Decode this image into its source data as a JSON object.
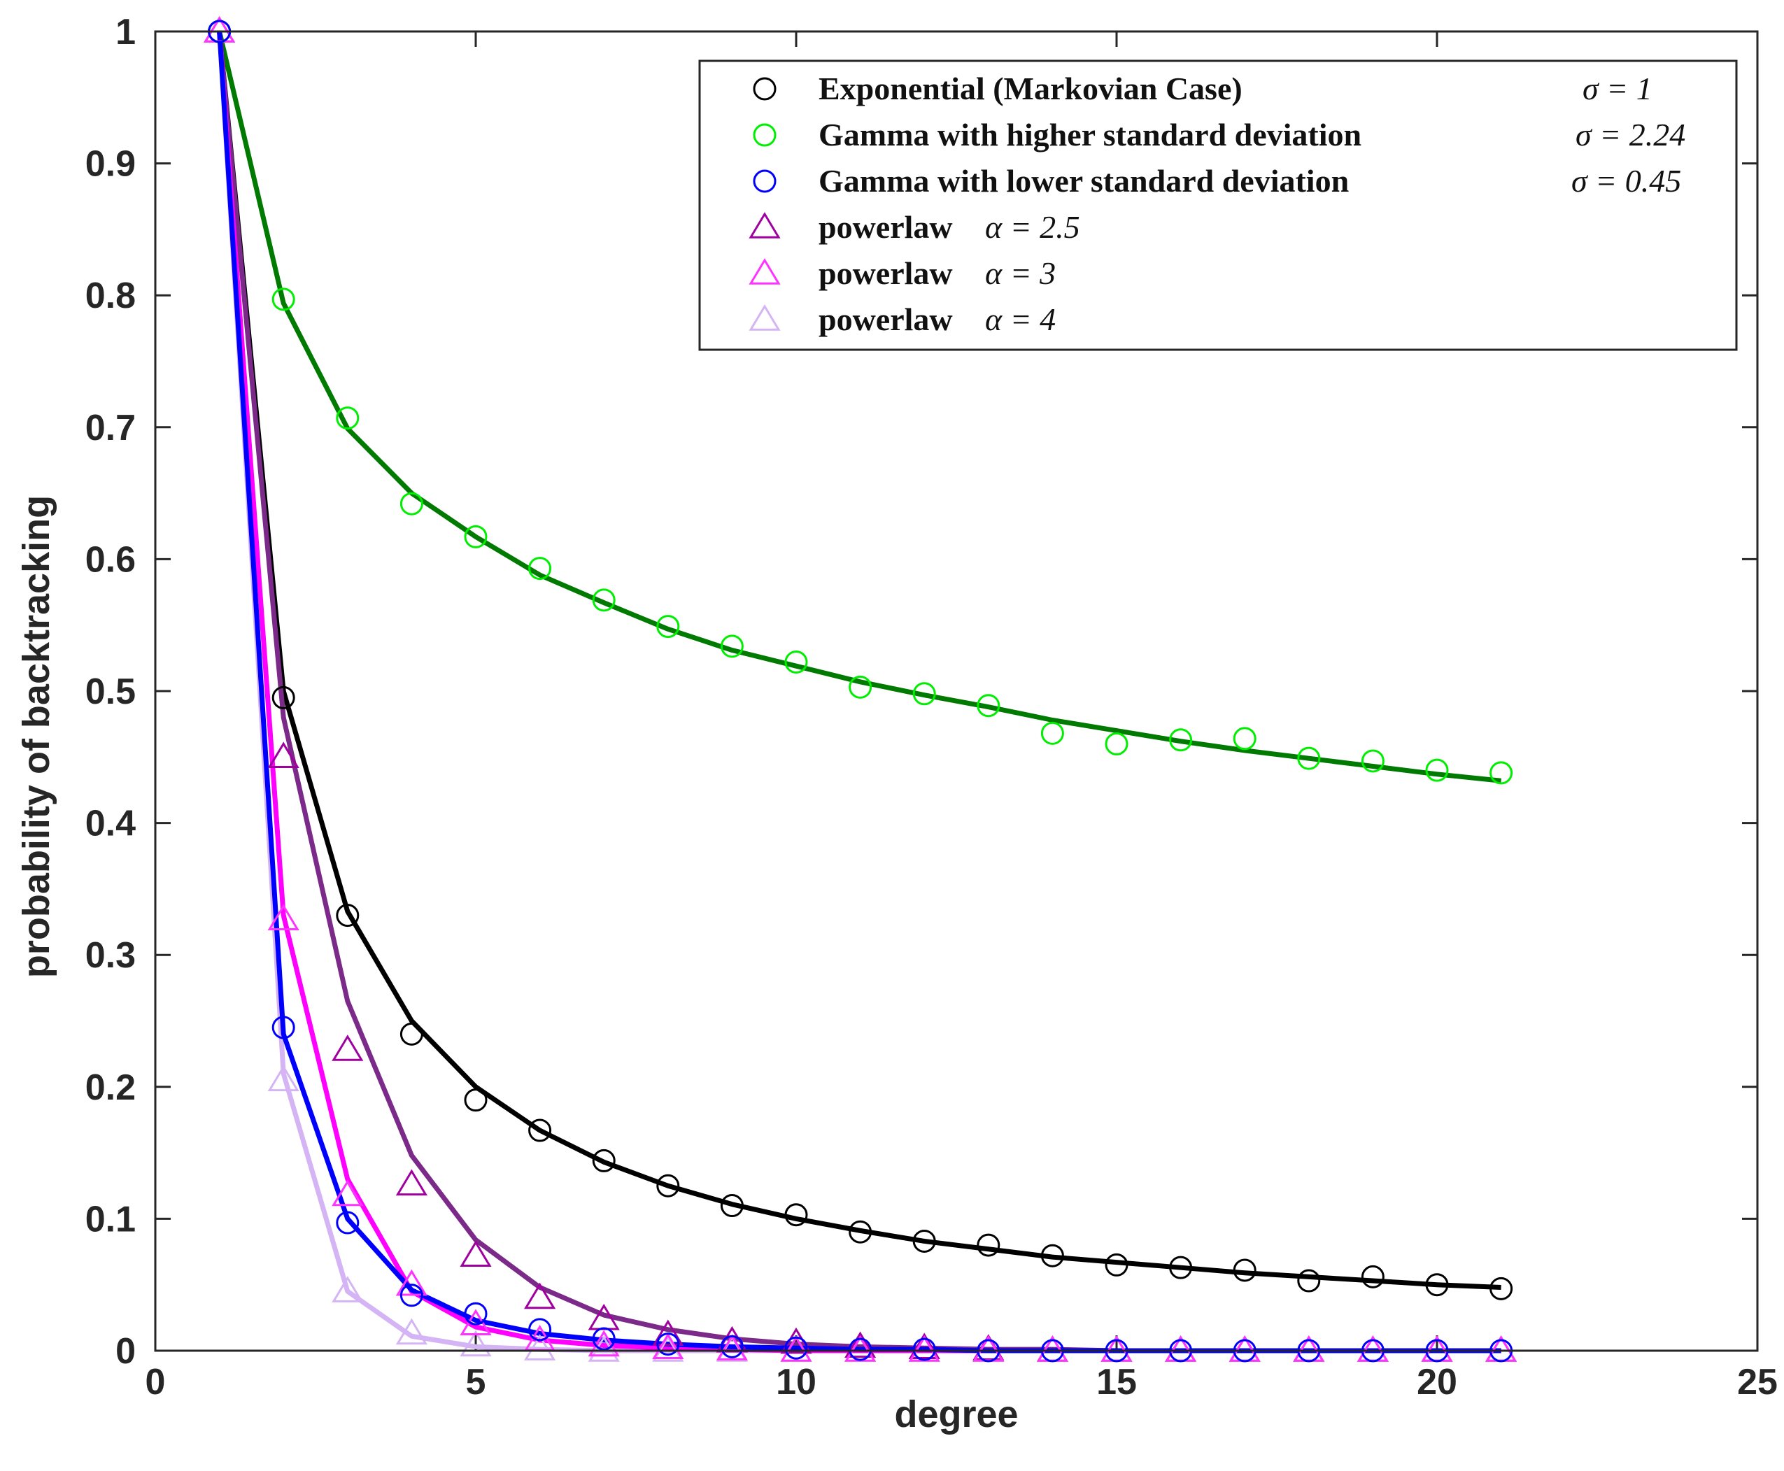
{
  "chart_data": {
    "type": "line",
    "title": "",
    "xlabel": "degree",
    "ylabel": "probability of backtracking",
    "xlim": [
      0,
      25
    ],
    "ylim": [
      0,
      1
    ],
    "xticks": [
      0,
      5,
      10,
      15,
      20,
      25
    ],
    "yticks": [
      0,
      0.1,
      0.2,
      0.3,
      0.4,
      0.5,
      0.6,
      0.7,
      0.8,
      0.9,
      1
    ],
    "x": [
      1,
      2,
      3,
      4,
      5,
      6,
      7,
      8,
      9,
      10,
      11,
      12,
      13,
      14,
      15,
      16,
      17,
      18,
      19,
      20,
      21
    ],
    "legend_position": "top-right",
    "series": [
      {
        "id": "exponential",
        "name": "Exponential (Markovian Case)",
        "sigma_label": "σ = 1",
        "marker": "circle",
        "marker_color": "#000000",
        "line_color": "#000000",
        "markers": [
          1.0,
          0.495,
          0.33,
          0.24,
          0.19,
          0.167,
          0.144,
          0.125,
          0.11,
          0.103,
          0.09,
          0.083,
          0.08,
          0.072,
          0.065,
          0.063,
          0.061,
          0.053,
          0.056,
          0.05,
          0.047
        ],
        "fit": [
          1.0,
          0.5,
          0.333,
          0.25,
          0.2,
          0.167,
          0.143,
          0.125,
          0.111,
          0.1,
          0.091,
          0.083,
          0.077,
          0.071,
          0.067,
          0.063,
          0.059,
          0.056,
          0.053,
          0.05,
          0.048
        ]
      },
      {
        "id": "gamma-high",
        "name": "Gamma with higher standard deviation",
        "sigma_label": "σ = 2.24",
        "marker": "circle",
        "marker_color": "#00ee00",
        "line_color": "#007a00",
        "markers": [
          1.0,
          0.797,
          0.707,
          0.642,
          0.617,
          0.593,
          0.569,
          0.549,
          0.534,
          0.522,
          0.503,
          0.498,
          0.489,
          0.468,
          0.46,
          0.463,
          0.464,
          0.449,
          0.447,
          0.44,
          0.438
        ],
        "fit": [
          1.0,
          0.794,
          0.699,
          0.65,
          0.617,
          0.588,
          0.567,
          0.547,
          0.531,
          0.519,
          0.507,
          0.497,
          0.488,
          0.478,
          0.47,
          0.462,
          0.455,
          0.449,
          0.443,
          0.437,
          0.432
        ]
      },
      {
        "id": "gamma-low",
        "name": "Gamma with lower standard deviation",
        "sigma_label": "σ = 0.45",
        "marker": "circle",
        "marker_color": "#0000ff",
        "line_color": "#0000ff",
        "markers": [
          1.0,
          0.245,
          0.097,
          0.042,
          0.028,
          0.016,
          0.009,
          0.005,
          0.003,
          0.002,
          0.001,
          0.001,
          0.0,
          0.0,
          0.0,
          0.0,
          0.0,
          0.0,
          0.0,
          0.0,
          0.0
        ],
        "fit": [
          1.0,
          0.24,
          0.1,
          0.046,
          0.023,
          0.013,
          0.008,
          0.005,
          0.003,
          0.002,
          0.001,
          0.001,
          0.0,
          0.0,
          0.0,
          0.0,
          0.0,
          0.0,
          0.0,
          0.0,
          0.0
        ]
      },
      {
        "id": "powerlaw-25",
        "name": "powerlaw",
        "sigma_label": "α = 2.5",
        "marker": "triangle",
        "marker_color": "#a000a0",
        "line_color": "#7b2a8a",
        "markers": [
          1.0,
          0.45,
          0.228,
          0.126,
          0.072,
          0.04,
          0.024,
          0.012,
          0.007,
          0.006,
          0.003,
          0.002,
          0.001,
          0.0,
          0.0,
          0.0,
          0.0,
          0.0,
          0.0,
          0.0,
          0.0
        ],
        "fit": [
          1.0,
          0.48,
          0.265,
          0.148,
          0.084,
          0.048,
          0.027,
          0.016,
          0.009,
          0.005,
          0.003,
          0.002,
          0.001,
          0.001,
          0.0,
          0.0,
          0.0,
          0.0,
          0.0,
          0.0,
          0.0
        ]
      },
      {
        "id": "powerlaw-3",
        "name": "powerlaw",
        "sigma_label": "α = 3",
        "marker": "triangle",
        "marker_color": "#ff33ff",
        "line_color": "#ff00ff",
        "markers": [
          1.0,
          0.327,
          0.118,
          0.05,
          0.02,
          0.008,
          0.004,
          0.002,
          0.001,
          0.0,
          0.0,
          0.0,
          0.0,
          0.0,
          0.0,
          0.0,
          0.0,
          0.0,
          0.0,
          0.0,
          0.0
        ],
        "fit": [
          1.0,
          0.33,
          0.13,
          0.045,
          0.018,
          0.008,
          0.004,
          0.002,
          0.001,
          0.0,
          0.0,
          0.0,
          0.0,
          0.0,
          0.0,
          0.0,
          0.0,
          0.0,
          0.0,
          0.0,
          0.0
        ]
      },
      {
        "id": "powerlaw-4",
        "name": "powerlaw",
        "sigma_label": "α = 4",
        "marker": "triangle",
        "marker_color": "#d4b4f4",
        "line_color": "#d4b4f4",
        "markers": [
          1.0,
          0.205,
          0.045,
          0.013,
          0.004,
          0.001,
          0.0,
          0.0,
          0.0,
          0.0,
          0.0,
          0.0,
          0.0,
          0.0,
          0.0,
          0.0,
          0.0,
          0.0,
          0.0,
          0.0,
          0.0
        ],
        "fit": [
          1.0,
          0.21,
          0.045,
          0.011,
          0.003,
          0.001,
          0.0,
          0.0,
          0.0,
          0.0,
          0.0,
          0.0,
          0.0,
          0.0,
          0.0,
          0.0,
          0.0,
          0.0,
          0.0,
          0.0,
          0.0
        ]
      }
    ]
  }
}
